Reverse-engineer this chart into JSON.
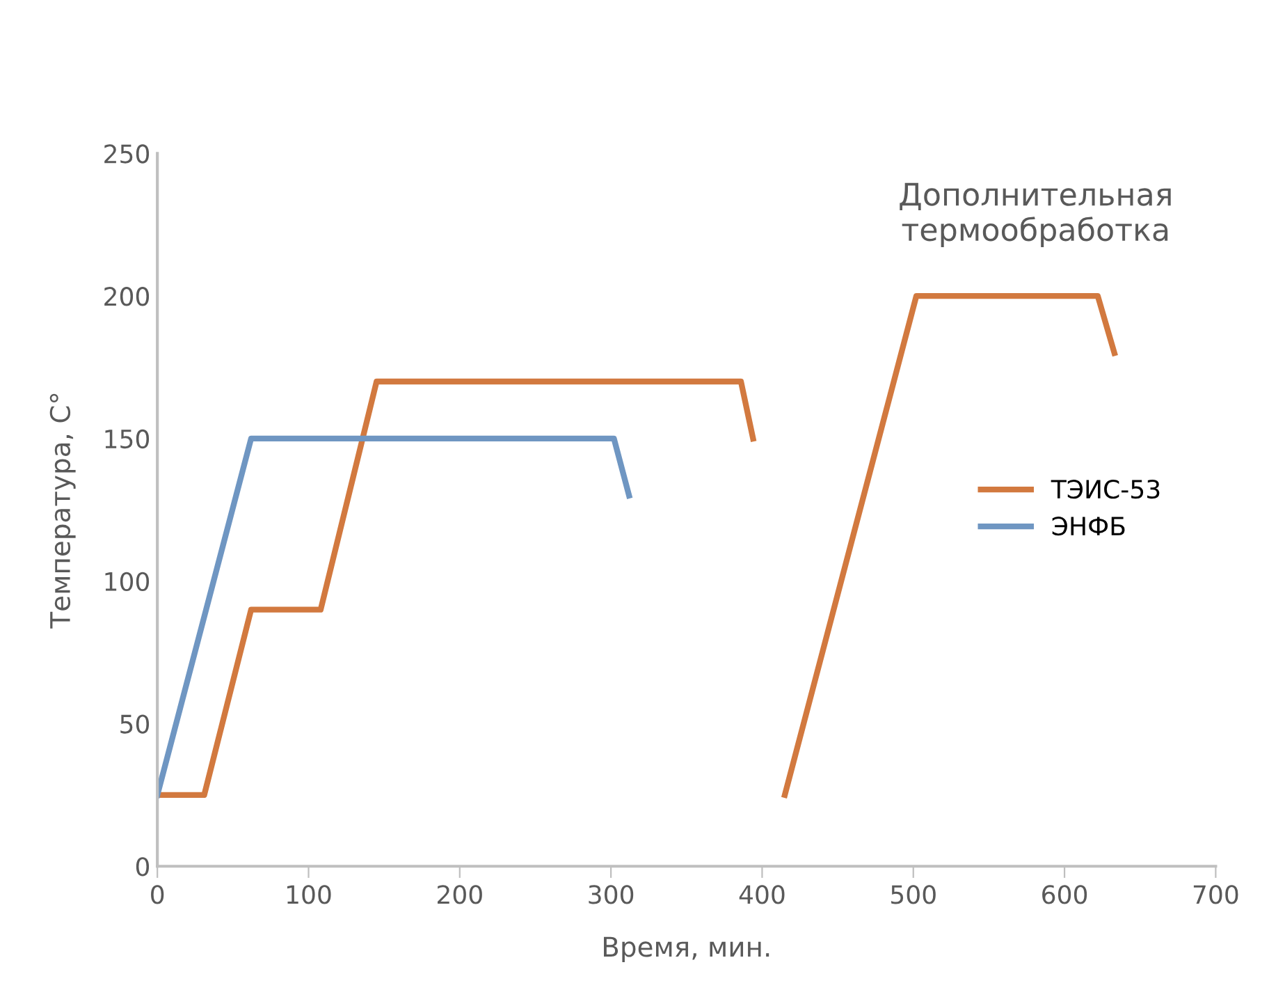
{
  "chart_data": {
    "type": "line",
    "xlabel": "Время, мин.",
    "ylabel": "Температура, С°",
    "annotations": [
      "Дополнительная\nтермообработка"
    ],
    "series": [
      {
        "name": "ТЭИС-53",
        "color": "#d2793f",
        "x": [
          0,
          31,
          62,
          108,
          145,
          386,
          394,
          null,
          415,
          502,
          622,
          633
        ],
        "values": [
          25,
          25,
          90,
          90,
          170,
          170,
          150,
          null,
          25,
          200,
          200,
          180
        ]
      },
      {
        "name": "ЭНФБ",
        "color": "#6f96c2",
        "x": [
          0,
          62,
          302,
          312
        ],
        "values": [
          25,
          150,
          150,
          130
        ]
      }
    ],
    "xlim": [
      0,
      700
    ],
    "xticks": [
      0,
      100,
      200,
      300,
      400,
      500,
      600,
      700
    ],
    "ylim": [
      0,
      250
    ],
    "yticks": [
      0,
      50,
      100,
      150,
      200,
      250
    ],
    "grid": false,
    "legend": "right",
    "marker": "none",
    "line_style": "solid"
  }
}
